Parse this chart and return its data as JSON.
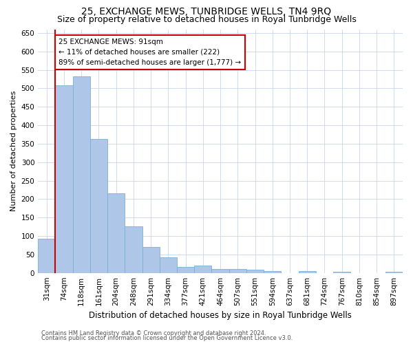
{
  "title": "25, EXCHANGE MEWS, TUNBRIDGE WELLS, TN4 9RQ",
  "subtitle": "Size of property relative to detached houses in Royal Tunbridge Wells",
  "xlabel": "Distribution of detached houses by size in Royal Tunbridge Wells",
  "ylabel": "Number of detached properties",
  "footer_line1": "Contains HM Land Registry data © Crown copyright and database right 2024.",
  "footer_line2": "Contains public sector information licensed under the Open Government Licence v3.0.",
  "bin_labels": [
    "31sqm",
    "74sqm",
    "118sqm",
    "161sqm",
    "204sqm",
    "248sqm",
    "291sqm",
    "334sqm",
    "377sqm",
    "421sqm",
    "464sqm",
    "507sqm",
    "551sqm",
    "594sqm",
    "637sqm",
    "681sqm",
    "724sqm",
    "767sqm",
    "810sqm",
    "854sqm",
    "897sqm"
  ],
  "bar_values": [
    93,
    508,
    533,
    363,
    215,
    126,
    70,
    43,
    16,
    19,
    11,
    11,
    8,
    5,
    0,
    5,
    0,
    4,
    0,
    0,
    4
  ],
  "bar_color": "#aec6e8",
  "bar_edge_color": "#7aafd4",
  "grid_color": "#c8d4e8",
  "ylim": [
    0,
    660
  ],
  "yticks": [
    0,
    50,
    100,
    150,
    200,
    250,
    300,
    350,
    400,
    450,
    500,
    550,
    600,
    650
  ],
  "property_bin_index": 1,
  "red_line_color": "#cc0000",
  "annotation_line1": "25 EXCHANGE MEWS: 91sqm",
  "annotation_line2": "← 11% of detached houses are smaller (222)",
  "annotation_line3": "89% of semi-detached houses are larger (1,777) →",
  "annotation_box_color": "#ffffff",
  "annotation_edge_color": "#cc0000",
  "title_fontsize": 10,
  "subtitle_fontsize": 9,
  "annotation_fontsize": 7.5,
  "xlabel_fontsize": 8.5,
  "ylabel_fontsize": 8,
  "tick_fontsize": 7.5,
  "footer_fontsize": 6
}
